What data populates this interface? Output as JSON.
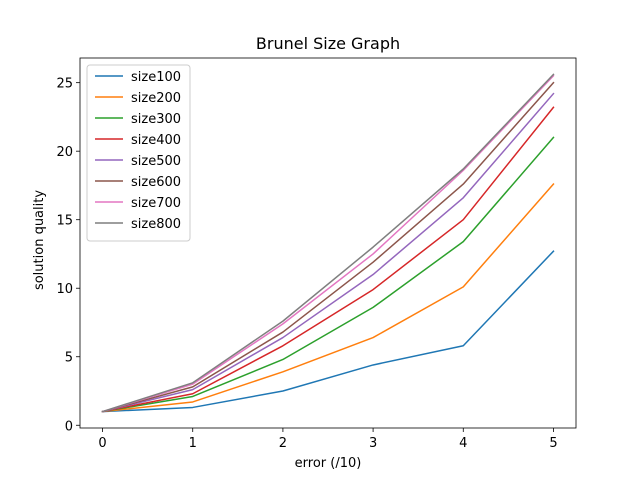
{
  "chart_data": {
    "type": "line",
    "title": "Brunel Size Graph",
    "xlabel": "error (/10)",
    "ylabel": "solution quality",
    "x": [
      0,
      1,
      2,
      3,
      4,
      5
    ],
    "xlim": [
      -0.25,
      5.25
    ],
    "ylim": [
      -0.2,
      26.8
    ],
    "xticks": [
      0,
      1,
      2,
      3,
      4,
      5
    ],
    "yticks": [
      0,
      5,
      10,
      15,
      20,
      25
    ],
    "grid": false,
    "legend_position": "top-left",
    "series": [
      {
        "name": "size100",
        "color": "#1f77b4",
        "values": [
          1.0,
          1.3,
          2.5,
          4.4,
          5.8,
          12.7
        ]
      },
      {
        "name": "size200",
        "color": "#ff7f0e",
        "values": [
          1.0,
          1.7,
          3.9,
          6.4,
          10.1,
          17.6
        ]
      },
      {
        "name": "size300",
        "color": "#2ca02c",
        "values": [
          1.0,
          2.1,
          4.8,
          8.6,
          13.4,
          21.0
        ]
      },
      {
        "name": "size400",
        "color": "#d62728",
        "values": [
          1.0,
          2.3,
          5.8,
          9.9,
          15.0,
          23.2
        ]
      },
      {
        "name": "size500",
        "color": "#9467bd",
        "values": [
          1.0,
          2.6,
          6.4,
          11.0,
          16.6,
          24.2
        ]
      },
      {
        "name": "size600",
        "color": "#8c564b",
        "values": [
          1.0,
          2.8,
          6.8,
          11.9,
          17.6,
          25.0
        ]
      },
      {
        "name": "size700",
        "color": "#e377c2",
        "values": [
          1.0,
          3.0,
          7.4,
          12.5,
          18.6,
          25.5
        ]
      },
      {
        "name": "size800",
        "color": "#7f7f7f",
        "values": [
          1.0,
          3.1,
          7.6,
          13.0,
          18.7,
          25.6
        ]
      }
    ]
  }
}
